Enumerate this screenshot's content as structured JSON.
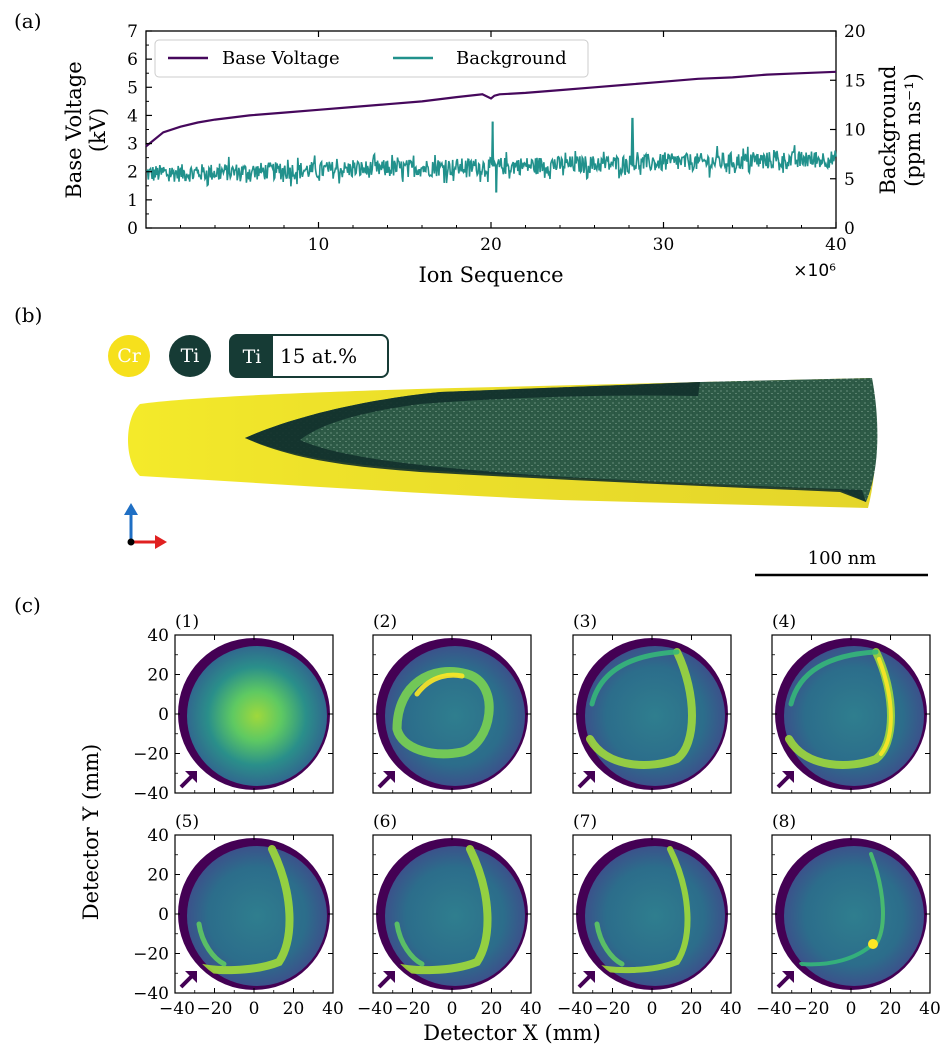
{
  "panel_labels": {
    "a": "(a)",
    "b": "(b)",
    "c": "(c)"
  },
  "colors": {
    "voltage": "#46085c",
    "background": "#21918c",
    "cr": "#f6e01c",
    "ti": "#163b35",
    "viridis_dark": "#440154",
    "viridis_mid": "#2c6d8b",
    "viridis_bright": "#fde725",
    "axis_up": "#1f6fc4",
    "axis_right": "#e02020"
  },
  "chart_data": [
    {
      "type": "line",
      "title": "",
      "xlabel": "Ion Sequence",
      "x_scale_label": "×10⁶",
      "xlim": [
        0,
        40
      ],
      "x_ticks": [
        10,
        20,
        30,
        40
      ],
      "ylabel_left": [
        "Base Voltage",
        "(kV)"
      ],
      "ylim_left": [
        0,
        7
      ],
      "y_ticks_left": [
        0,
        1,
        2,
        3,
        4,
        5,
        6,
        7
      ],
      "ylabel_right": [
        "Background",
        "(ppm ns⁻¹)"
      ],
      "ylim_right": [
        0,
        20
      ],
      "y_ticks_right": [
        0,
        5,
        10,
        15,
        20
      ],
      "legend_position": "top-left",
      "series": [
        {
          "name": "Base Voltage",
          "axis": "left",
          "x": [
            0,
            1,
            2,
            3,
            4,
            6,
            8,
            10,
            12,
            14,
            16,
            18,
            19.5,
            20,
            20.2,
            20.5,
            22,
            24,
            26,
            28,
            30,
            32,
            34,
            36,
            38,
            40
          ],
          "values": [
            2.9,
            3.4,
            3.6,
            3.75,
            3.85,
            4.0,
            4.1,
            4.2,
            4.3,
            4.4,
            4.5,
            4.65,
            4.75,
            4.6,
            4.7,
            4.75,
            4.8,
            4.9,
            5.0,
            5.1,
            5.2,
            5.3,
            5.35,
            5.45,
            5.5,
            5.55
          ]
        },
        {
          "name": "Background",
          "axis": "right",
          "x_range": [
            0,
            40
          ],
          "mean_start": 5.5,
          "mean_end": 7.0,
          "noise_amplitude": 0.9,
          "spikes": [
            {
              "x": 20.1,
              "value": 10.8
            },
            {
              "x": 28.2,
              "value": 11.1
            },
            {
              "x": 20.3,
              "value": 3.6
            }
          ]
        }
      ]
    },
    {
      "type": "heatmap",
      "ylabel": "Detector Y (mm)",
      "xlabel": "Detector X (mm)",
      "xlim": [
        -40,
        40
      ],
      "ylim": [
        -40,
        40
      ],
      "x_ticks": [
        -40,
        -20,
        0,
        20,
        40
      ],
      "y_ticks": [
        -40,
        -20,
        0,
        20,
        40
      ],
      "panels": [
        {
          "label": "(1)",
          "pattern": "diffuse-center"
        },
        {
          "label": "(2)",
          "pattern": "small-ring"
        },
        {
          "label": "(3)",
          "pattern": "large-ring"
        },
        {
          "label": "(4)",
          "pattern": "large-ring-right"
        },
        {
          "label": "(5)",
          "pattern": "arc-right"
        },
        {
          "label": "(6)",
          "pattern": "arc-right"
        },
        {
          "label": "(7)",
          "pattern": "arc-fading"
        },
        {
          "label": "(8)",
          "pattern": "arc-faint"
        }
      ]
    }
  ],
  "reconstruction": {
    "legend_items": [
      "Cr",
      "Ti"
    ],
    "iso_label": "Ti",
    "iso_value": "15 at.%",
    "scale_bar": "100 nm"
  }
}
